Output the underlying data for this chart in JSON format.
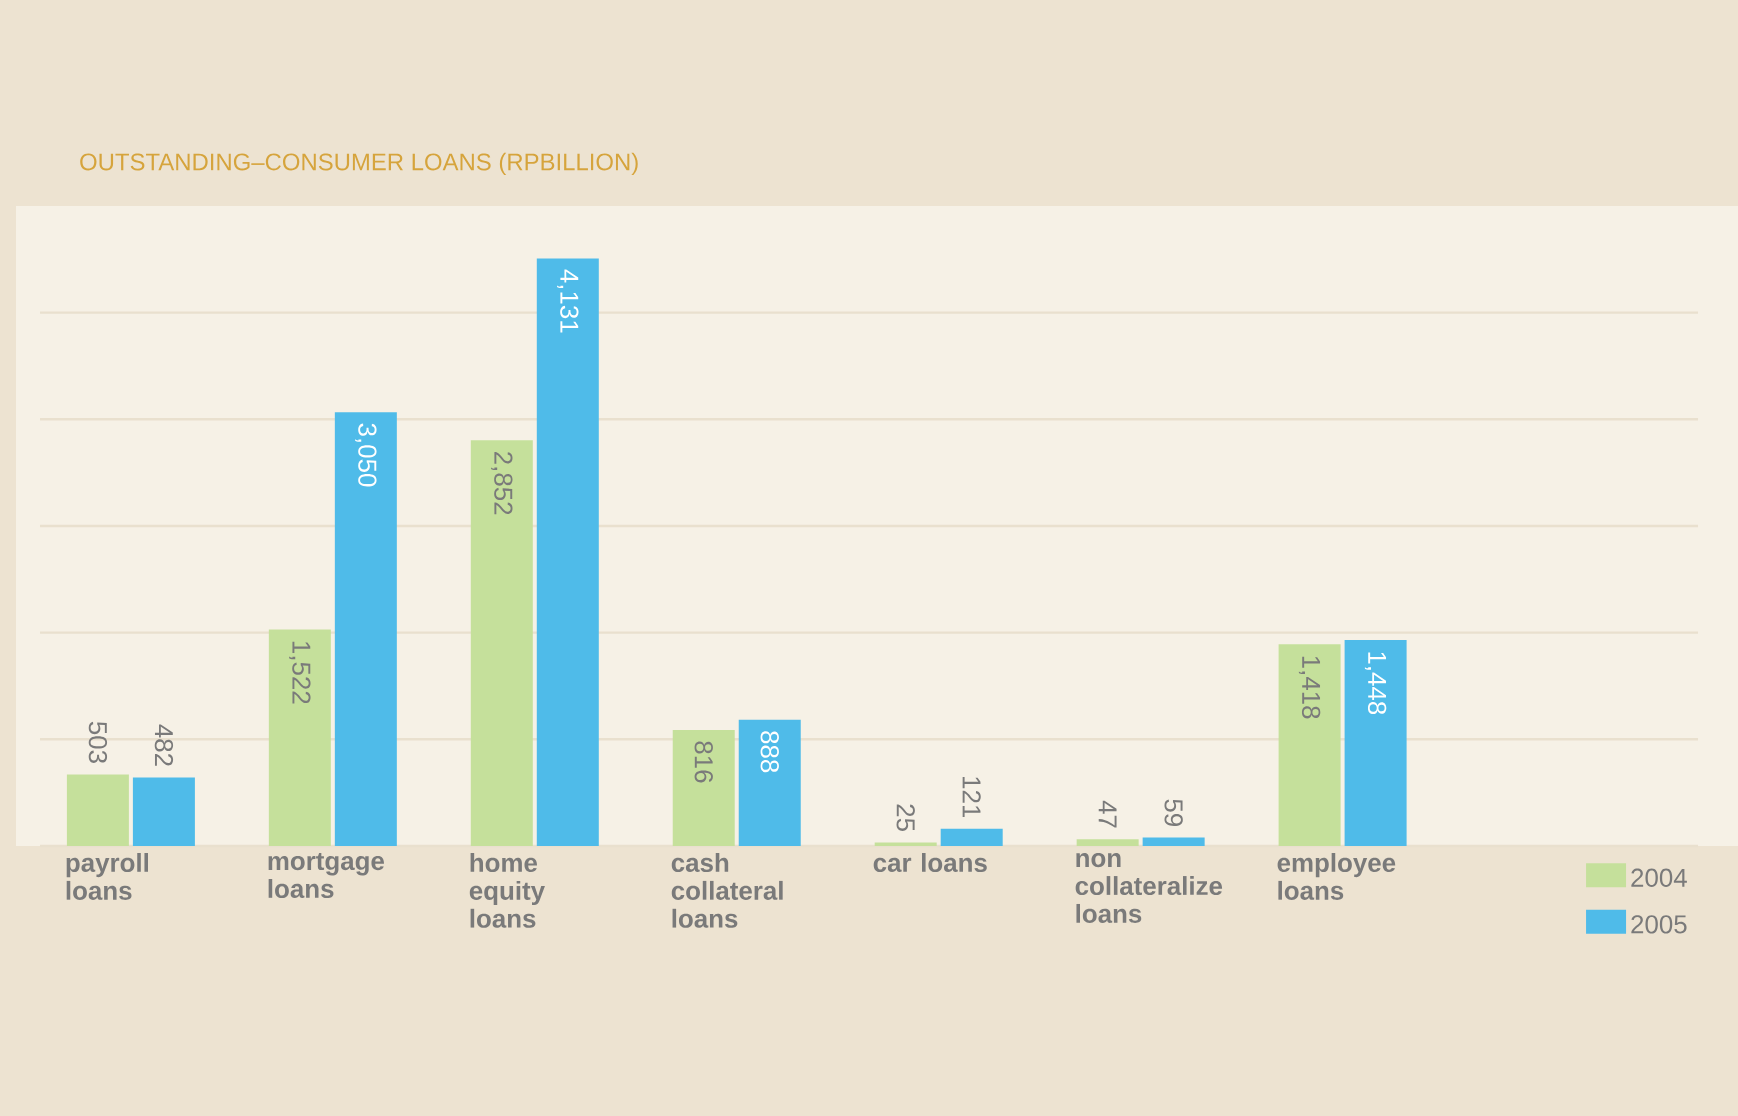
{
  "chart_data": {
    "type": "bar",
    "title": "OUTSTANDING–CONSUMER LOANS (RPBILLION)",
    "categories": [
      "payroll loans",
      "mortgage loans",
      "home equity loans",
      "cash collateral loans",
      "car loans",
      "non collateralize loans",
      "employee loans"
    ],
    "series": [
      {
        "name": "2004",
        "color": "#c5e09b",
        "values": [
          503,
          1522,
          2852,
          816,
          25,
          47,
          1418
        ],
        "value_labels": [
          "503",
          "1,522",
          "2,852",
          "816",
          "25",
          "47",
          "1,418"
        ]
      },
      {
        "name": "2005",
        "color": "#4fbbe9",
        "values": [
          482,
          3050,
          4131,
          888,
          121,
          59,
          1448
        ],
        "value_labels": [
          "482",
          "3,050",
          "4,131",
          "888",
          "121",
          "59",
          "1,448"
        ]
      }
    ],
    "ylim": [
      0,
      4500
    ],
    "yticks": [
      {
        "value": 0,
        "label": null
      },
      {
        "value": 750,
        "label": null
      },
      {
        "value": 1500,
        "label": null
      },
      {
        "value": 2250,
        "label": null
      },
      {
        "value": 3000,
        "label": null
      },
      {
        "value": 3750,
        "label": null
      }
    ],
    "grid": "y",
    "legend": "bottom right"
  }
}
